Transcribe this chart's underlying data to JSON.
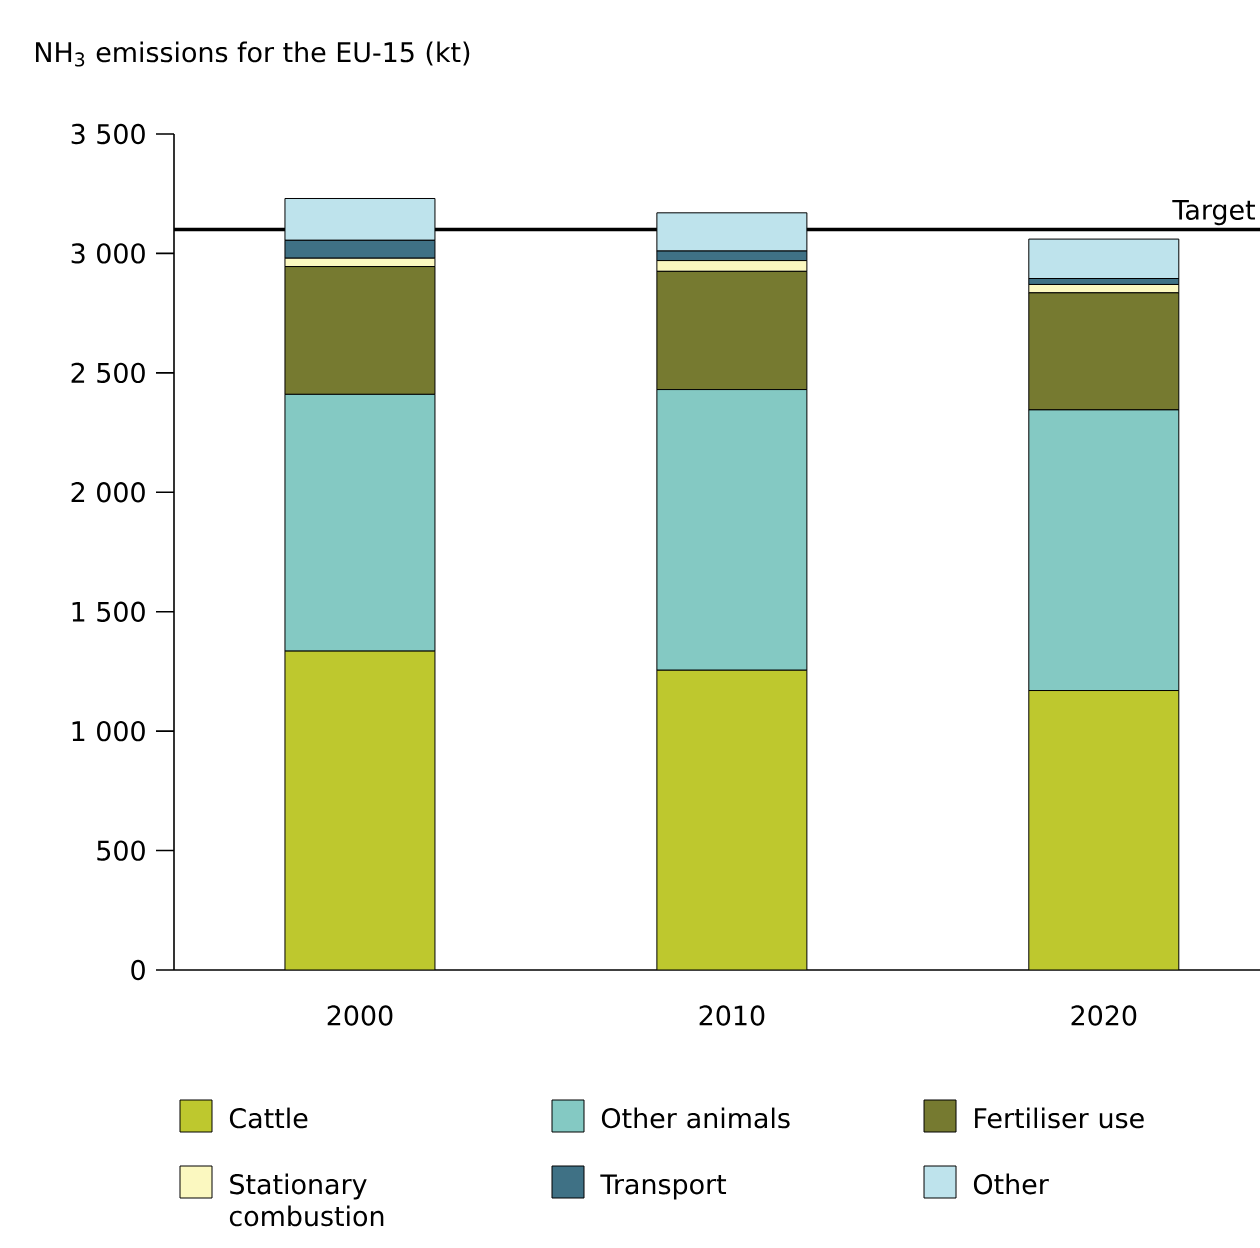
{
  "chart_data": {
    "type": "bar",
    "stacked": true,
    "ylabel": "NH$_{3}$ emissions for the EU-15 (kt)",
    "categories": [
      "2000",
      "2010",
      "2020"
    ],
    "series": [
      {
        "name": "Cattle",
        "color": "#bec82e",
        "values": [
          1335,
          1255,
          1170
        ]
      },
      {
        "name": "Other animals",
        "color": "#84c9c3",
        "values": [
          1075,
          1175,
          1175
        ]
      },
      {
        "name": "Fertiliser use",
        "color": "#767a30",
        "values": [
          535,
          495,
          490
        ]
      },
      {
        "name": "Stationary combustion",
        "color": "#fbf8c0",
        "values": [
          35,
          45,
          35
        ]
      },
      {
        "name": "Transport",
        "color": "#3f7185",
        "values": [
          75,
          40,
          25
        ]
      },
      {
        "name": "Other",
        "color": "#bee3ec",
        "values": [
          175,
          160,
          165
        ]
      }
    ],
    "ylim": [
      0,
      3500
    ],
    "yticks": [
      0,
      {
        "value": 500,
        "label": "500"
      },
      {
        "value": 1000,
        "label": "1 000"
      },
      {
        "value": 1500,
        "label": "1 500"
      },
      {
        "value": 2000,
        "label": "2 000"
      },
      {
        "value": 2500,
        "label": "2 500"
      },
      {
        "value": 3000,
        "label": "3 000"
      },
      {
        "value": 3500,
        "label": "3 500"
      }
    ],
    "ref_lines": [
      {
        "axis": "y",
        "value": 3100,
        "label": "Target"
      }
    ],
    "legend": "bottom"
  }
}
